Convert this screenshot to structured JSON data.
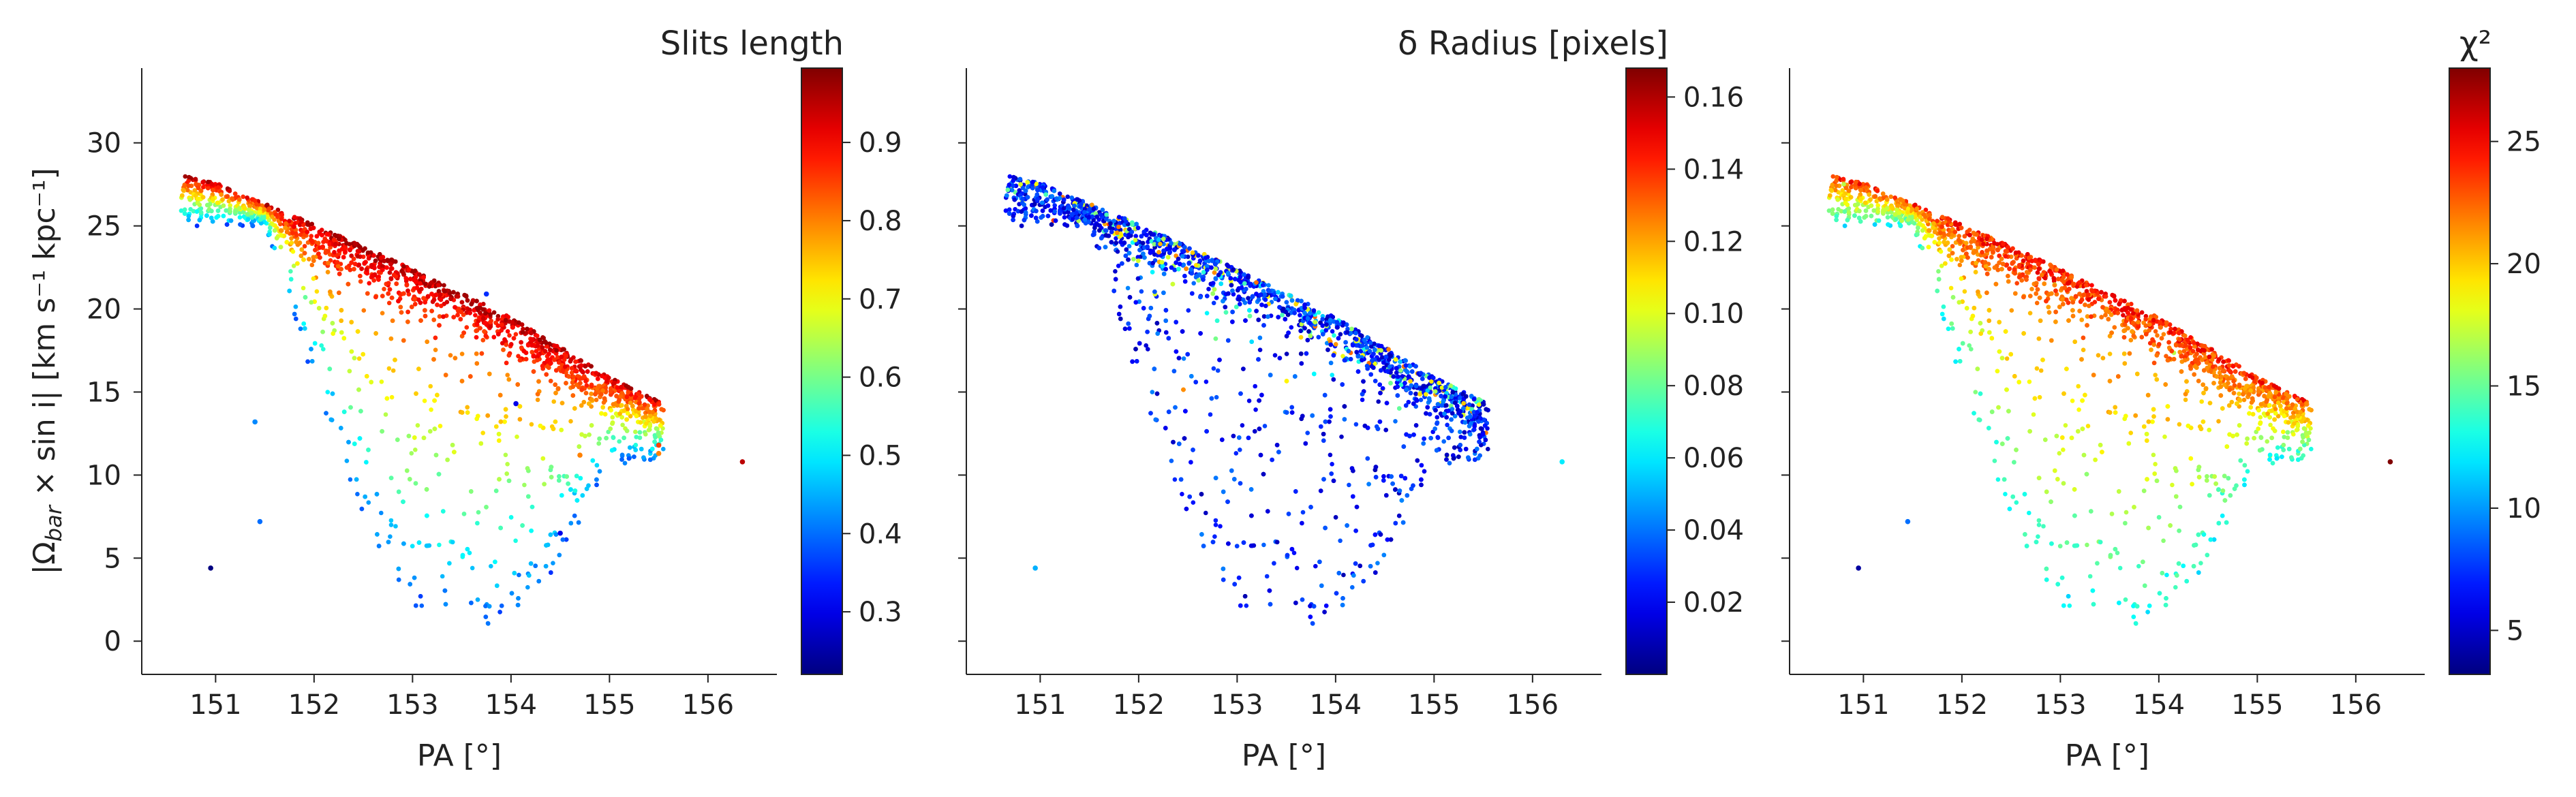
{
  "chart_data": [
    {
      "type": "scatter",
      "title": "Slits length",
      "xlabel": "PA [°]",
      "ylabel": "|Ω",
      "ylabel_sub": "bar",
      "ylabel_tail": " × sin i|   [km s⁻¹ kpc⁻¹]",
      "xlim": [
        150.25,
        156.7
      ],
      "ylim": [
        -2,
        34.5
      ],
      "xticks": [
        151,
        152,
        153,
        154,
        155,
        156
      ],
      "yticks": [
        0,
        5,
        10,
        15,
        20,
        25,
        30
      ],
      "colorbar": {
        "colormap": "jet",
        "range": [
          0.22,
          0.995
        ],
        "ticks": [
          0.3,
          0.4,
          0.5,
          0.6,
          0.7,
          0.8,
          0.9
        ],
        "tick_labels": [
          "0.3",
          "0.4",
          "0.5",
          "0.6",
          "0.7",
          "0.8",
          "0.9"
        ]
      },
      "point_count": 3600,
      "upper_envelope": [
        [
          150.6,
          28.1
        ],
        [
          151.0,
          27.6
        ],
        [
          152.0,
          25.1
        ],
        [
          153.0,
          22.4
        ],
        [
          154.0,
          19.5
        ],
        [
          155.0,
          15.9
        ],
        [
          155.55,
          14.3
        ]
      ],
      "lower_edge": [
        [
          151.5,
          25.0
        ],
        [
          152.0,
          15.5
        ],
        [
          152.5,
          7.0
        ],
        [
          153.0,
          2.0
        ],
        [
          153.7,
          0.5
        ],
        [
          154.3,
          3.0
        ],
        [
          155.0,
          10.5
        ],
        [
          155.6,
          11.0
        ]
      ],
      "outliers": [
        [
          150.95,
          4.4,
          0.22
        ],
        [
          151.45,
          7.2,
          0.4
        ],
        [
          151.4,
          13.2,
          0.42
        ],
        [
          156.35,
          10.8,
          0.95
        ],
        [
          153.75,
          20.9,
          0.35
        ],
        [
          154.05,
          14.3,
          0.3
        ],
        [
          154.7,
          11.2,
          0.8
        ],
        [
          155.5,
          11.3,
          0.8
        ],
        [
          155.5,
          11.8,
          0.85
        ],
        [
          154.5,
          6.5,
          0.3
        ]
      ],
      "color_trend": "high (red, ~0.9) along the upper envelope, decreasing to ~0.45 (cyan/blue) toward the bottom"
    },
    {
      "type": "scatter",
      "title": "δ Radius [pixels]",
      "xlabel": "PA [°]",
      "xlim": [
        150.25,
        156.7
      ],
      "ylim": [
        -2,
        34.5
      ],
      "xticks": [
        151,
        152,
        153,
        154,
        155,
        156
      ],
      "colorbar": {
        "colormap": "jet",
        "range": [
          0.0,
          0.168
        ],
        "ticks": [
          0.02,
          0.04,
          0.06,
          0.08,
          0.1,
          0.12,
          0.14,
          0.16
        ],
        "tick_labels": [
          "0.02",
          "0.04",
          "0.06",
          "0.08",
          "0.10",
          "0.12",
          "0.14",
          "0.16"
        ]
      },
      "point_count": 3600,
      "outliers": [
        [
          156.3,
          10.8,
          0.06
        ],
        [
          150.95,
          4.4,
          0.05
        ]
      ],
      "color_trend": "mostly low (blue, ~0.01-0.04) with scattered cyan/yellow points along the upper ridge"
    },
    {
      "type": "scatter",
      "title": "χ²",
      "xlabel": "PA [°]",
      "xlim": [
        150.25,
        156.7
      ],
      "ylim": [
        -2,
        34.5
      ],
      "xticks": [
        151,
        152,
        153,
        154,
        155,
        156
      ],
      "colorbar": {
        "colormap": "jet",
        "range": [
          3.2,
          28.0
        ],
        "ticks": [
          5,
          10,
          15,
          20,
          25
        ],
        "tick_labels": [
          "5",
          "10",
          "15",
          "20",
          "25"
        ]
      },
      "point_count": 3600,
      "outliers": [
        [
          156.35,
          10.8,
          28
        ],
        [
          150.95,
          4.4,
          4
        ],
        [
          151.45,
          7.2,
          9
        ]
      ],
      "color_trend": "orange/red (~22-26) along the upper ridge, yellow (~19) in the middle, cyan/green (~13) at the bottom"
    }
  ]
}
